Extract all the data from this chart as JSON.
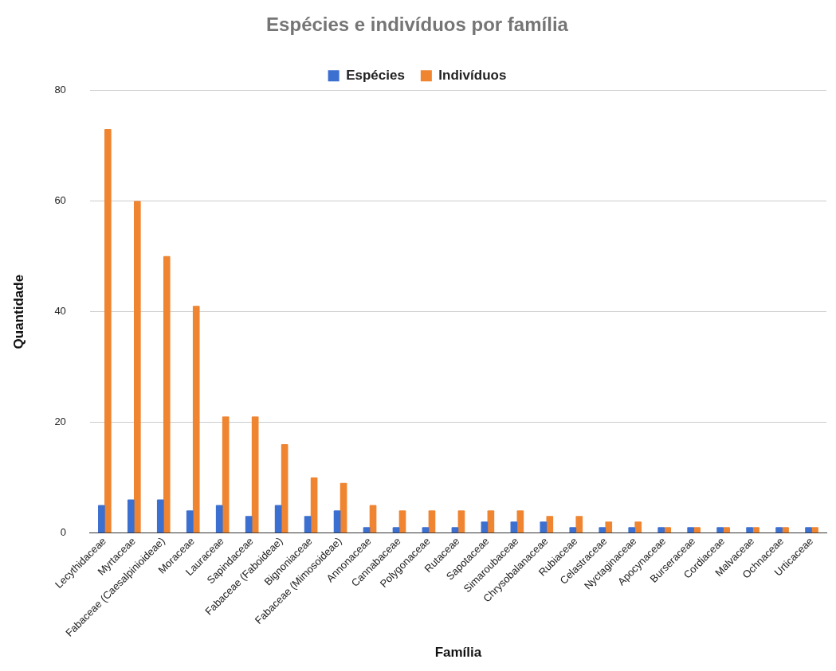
{
  "chart_data": {
    "type": "bar",
    "title": "Espécies e indivíduos por família",
    "xlabel": "Família",
    "ylabel": "Quantidade",
    "categories": [
      "Lecythidaceae",
      "Myrtaceae",
      "Fabaceae (Caesalpinioideae)",
      "Moraceae",
      "Lauraceae",
      "Sapindaceae",
      "Fabaceae (Faboideae)",
      "Bignoniaceae",
      "Fabaceae (Mimosoideae)",
      "Annonaceae",
      "Cannabaceae",
      "Polygonaceae",
      "Rutaceae",
      "Sapotaceae",
      "Simaroubaceae",
      "Chrysobalanaceae",
      "Rubiaceae",
      "Celastraceae",
      "Nyctaginaceae",
      "Apocynaceae",
      "Burseraceae",
      "Cordiaceae",
      "Malvaceae",
      "Ochnaceae",
      "Urticaceae"
    ],
    "series": [
      {
        "name": "Espécies",
        "color": "#3b6fd0",
        "values": [
          5,
          6,
          6,
          4,
          5,
          3,
          5,
          3,
          4,
          1,
          1,
          1,
          1,
          2,
          2,
          2,
          1,
          1,
          1,
          1,
          1,
          1,
          1,
          1,
          1
        ]
      },
      {
        "name": "Indivíduos",
        "color": "#ef8431",
        "values": [
          73,
          60,
          50,
          41,
          21,
          21,
          16,
          10,
          9,
          5,
          4,
          4,
          4,
          4,
          4,
          3,
          3,
          2,
          2,
          1,
          1,
          1,
          1,
          1,
          1
        ]
      }
    ],
    "ylim": [
      0,
      80
    ],
    "yticks": [
      0,
      20,
      40,
      60,
      80
    ],
    "grid": "y",
    "legend": "top"
  }
}
